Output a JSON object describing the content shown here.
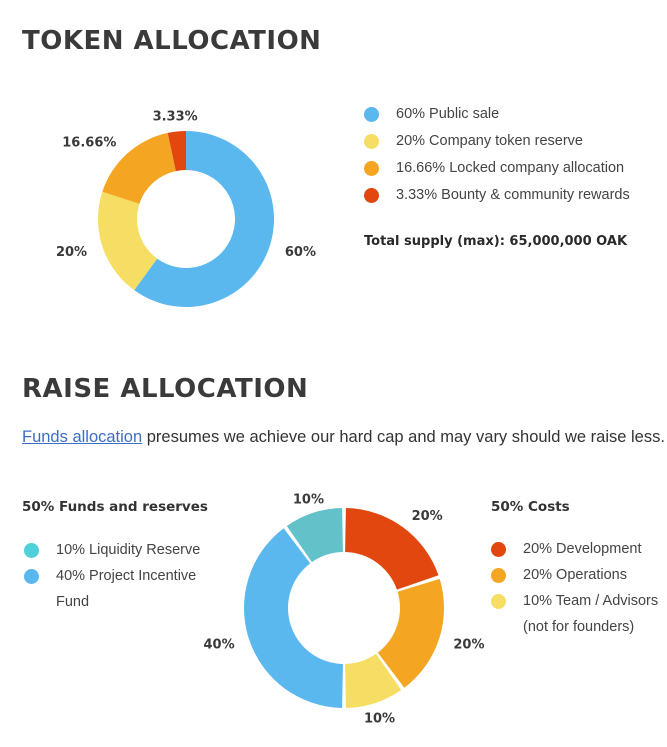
{
  "token_section": {
    "title": "TOKEN ALLOCATION",
    "total_supply": "Total supply (max): 65,000,000 OAK",
    "legend": [
      {
        "label": "60% Public sale",
        "color": "#5bb8ee"
      },
      {
        "label": "20% Company token reserve",
        "color": "#f5de63"
      },
      {
        "label": "16.66%  Locked company allocation",
        "color": "#f4a623"
      },
      {
        "label": "3.33% Bounty & community rewards",
        "color": "#e2470f"
      }
    ]
  },
  "raise_section": {
    "title": "RAISE ALLOCATION",
    "intro_link": "Funds allocation",
    "intro_text": " presumes we achieve our hard cap and may vary should we raise less.",
    "funds_title": "50% Funds and reserves",
    "funds_legend": [
      {
        "label": "10% Liquidity Reserve",
        "color": "#4fd0d8"
      },
      {
        "label": "40% Project Incentive Fund",
        "color": "#5bb8ee"
      }
    ],
    "costs_title": "50% Costs",
    "costs_legend": [
      {
        "label": "20% Development",
        "color": "#e2470f"
      },
      {
        "label": "20% Operations",
        "color": "#f4a623"
      },
      {
        "label": "10%  Team / Advisors (not for founders)",
        "color": "#f5de63"
      }
    ]
  },
  "chart_data": [
    {
      "type": "pie",
      "title": "TOKEN ALLOCATION",
      "categories": [
        "Public sale",
        "Company token reserve",
        "Locked company allocation",
        "Bounty & community rewards"
      ],
      "values": [
        60,
        20,
        16.66,
        3.33
      ],
      "labels": [
        "60%",
        "20%",
        "16.66%",
        "3.33%"
      ],
      "colors": [
        "#5bb8ee",
        "#f5de63",
        "#f4a623",
        "#e2470f"
      ]
    },
    {
      "type": "pie",
      "title": "RAISE ALLOCATION",
      "categories": [
        "Development",
        "Operations",
        "Team / Advisors",
        "Project Incentive Fund",
        "Liquidity Reserve"
      ],
      "values": [
        20,
        20,
        10,
        40,
        10
      ],
      "labels": [
        "20%",
        "20%",
        "10%",
        "40%",
        "10%"
      ],
      "colors": [
        "#e2470f",
        "#f4a623",
        "#f5de63",
        "#5bb8ee",
        "#63c1c9"
      ]
    }
  ]
}
